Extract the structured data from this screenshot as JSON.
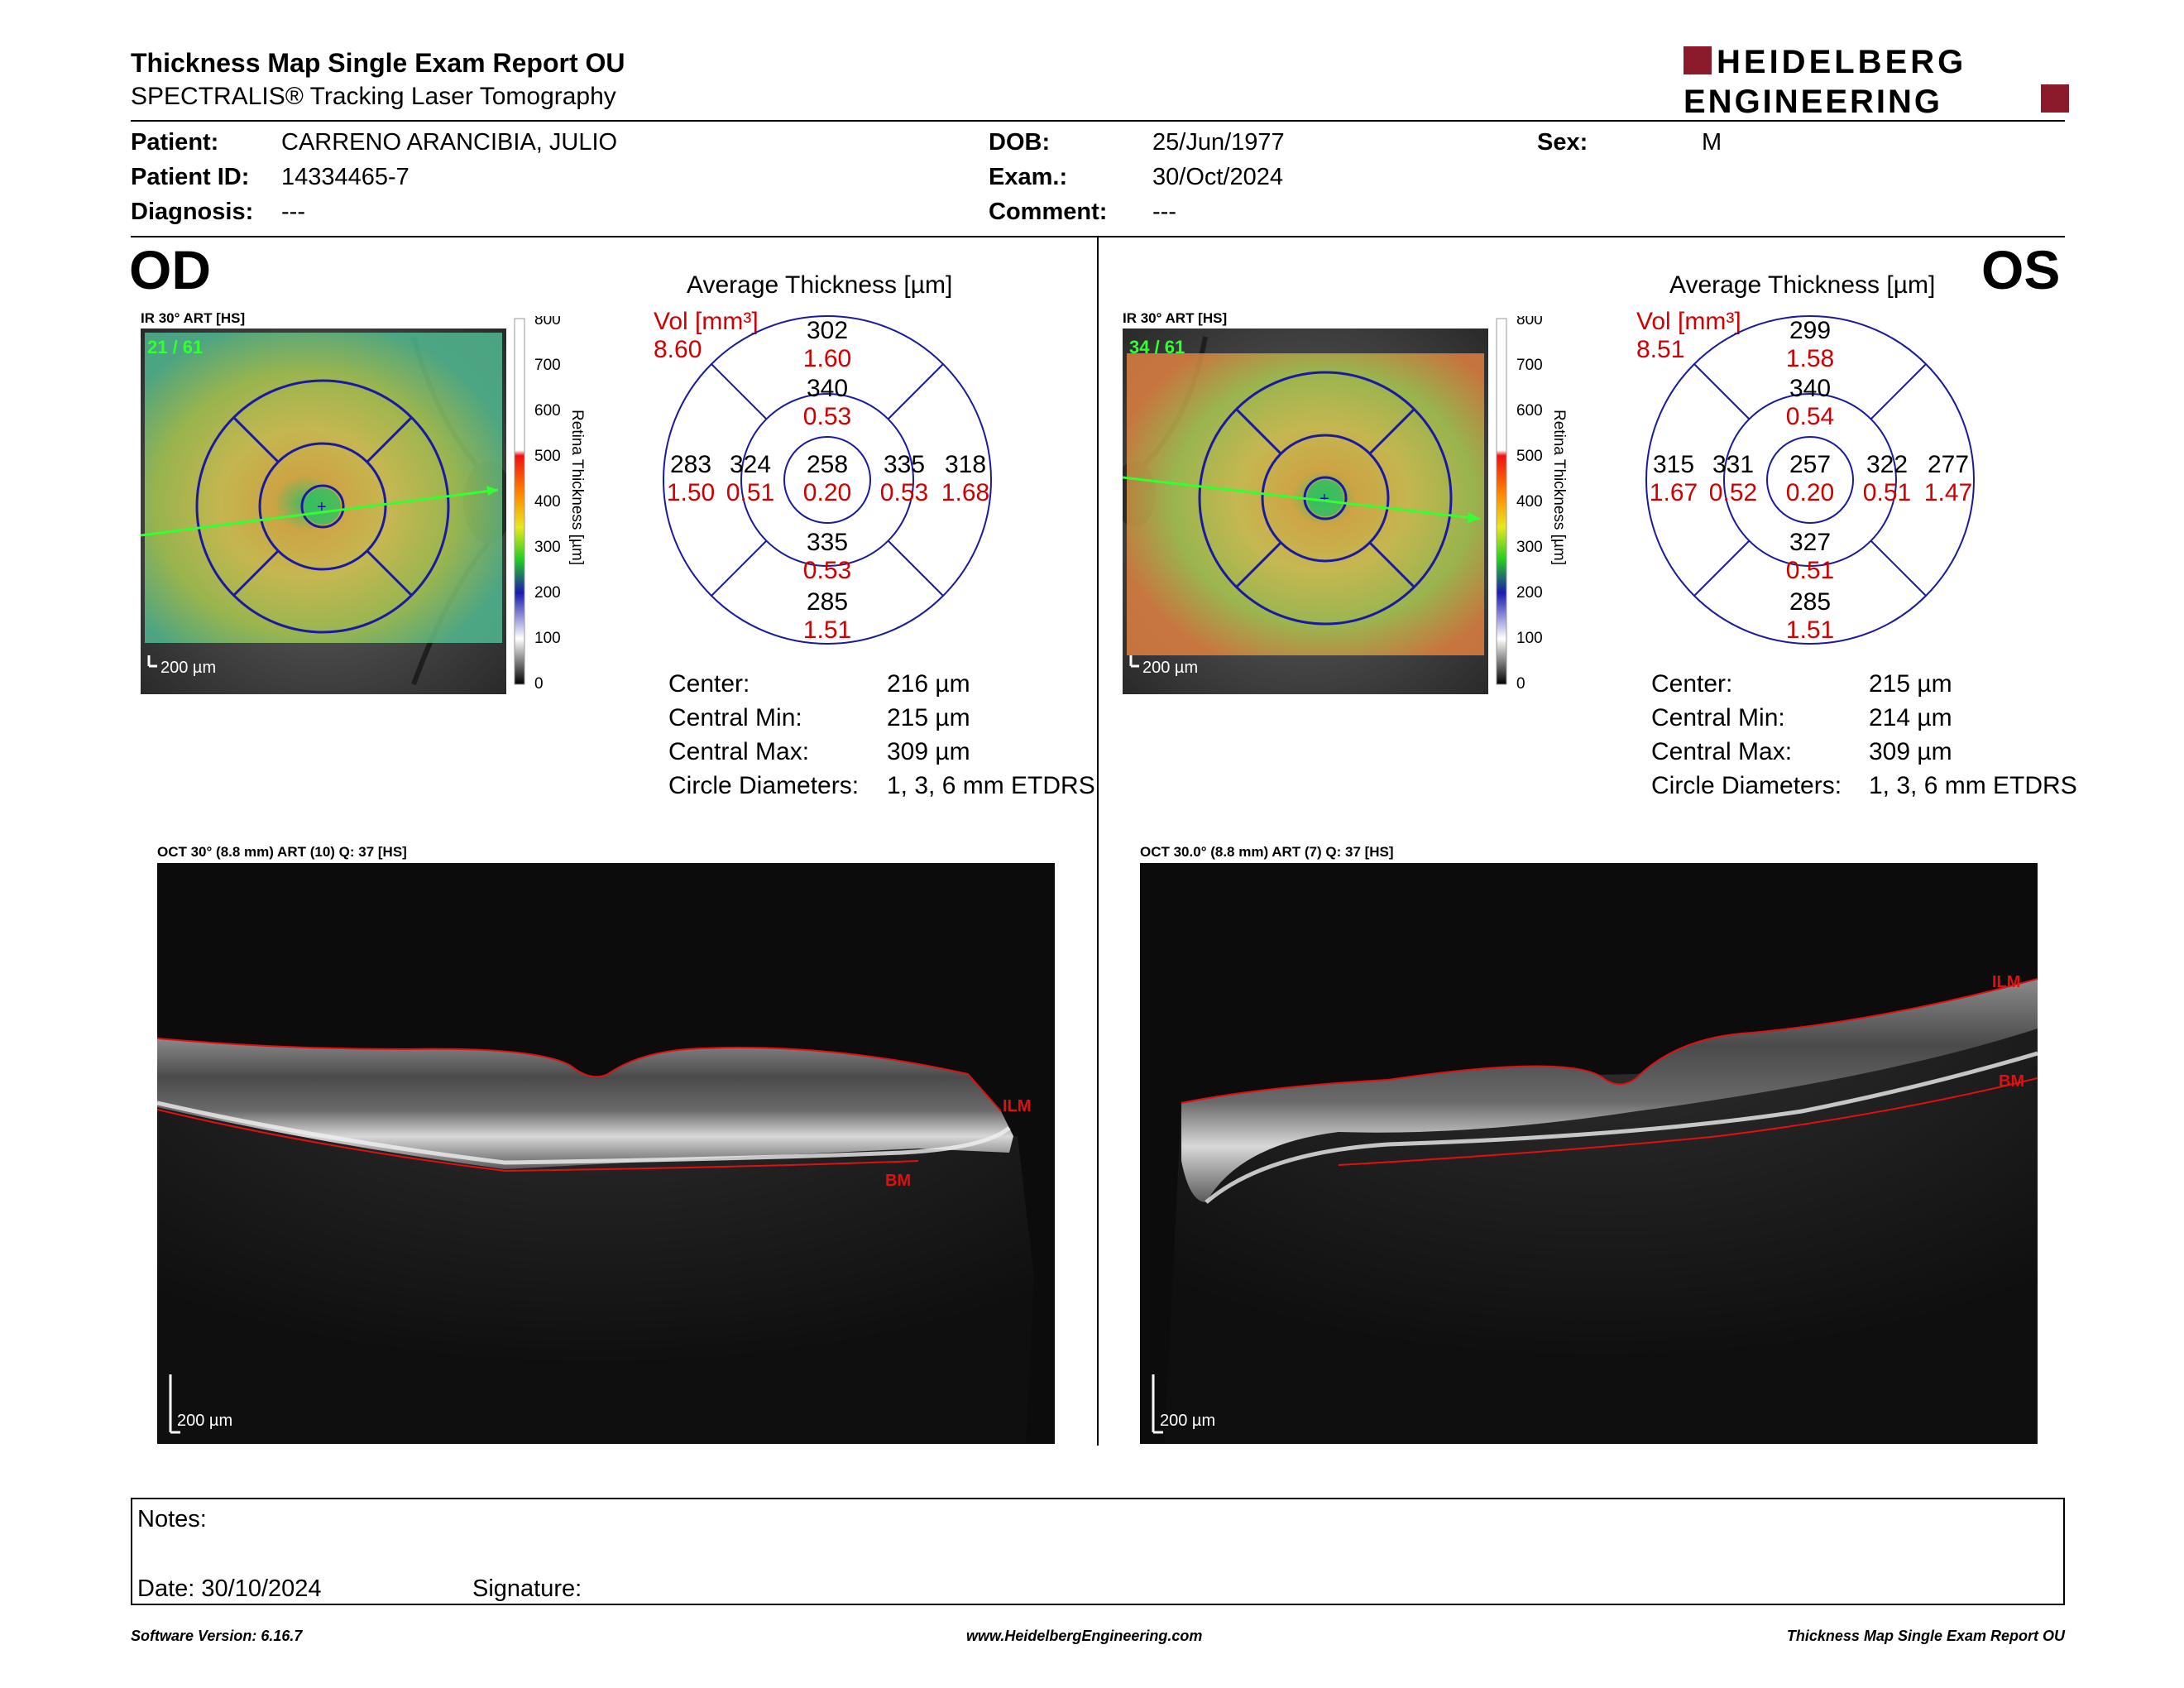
{
  "header": {
    "title": "Thickness Map Single Exam Report OU",
    "subtitle": "SPECTRALIS® Tracking Laser Tomography",
    "logo_line1": "HEIDELBERG",
    "logo_line2": "ENGINEERING",
    "brand_color": "#8b1a2b"
  },
  "patient": {
    "patient_label": "Patient:",
    "patient": "CARRENO ARANCIBIA, JULIO",
    "id_label": "Patient ID:",
    "id": "14334465-7",
    "diagnosis_label": "Diagnosis:",
    "diagnosis": "---",
    "dob_label": "DOB:",
    "dob": "25/Jun/1977",
    "exam_label": "Exam.:",
    "exam": "30/Oct/2024",
    "comment_label": "Comment:",
    "comment": "---",
    "sex_label": "Sex:",
    "sex": "M"
  },
  "od": {
    "eye": "OD",
    "ir_label": "IR 30° ART [HS]",
    "frames": "21 / 61",
    "scale": "200 µm",
    "colorbar_ticks": [
      "800",
      "700",
      "600",
      "500",
      "400",
      "300",
      "200",
      "100",
      "0"
    ],
    "colorbar_title": "Retina Thickness [µm]",
    "avg_title": "Average Thickness [µm]",
    "vol_label": "Vol [mm³]",
    "vol_total": "8.60",
    "sectors": {
      "outer_top": "302",
      "outer_top_vol": "1.60",
      "inner_top": "340",
      "inner_top_vol": "0.53",
      "outer_left": "283",
      "outer_left_vol": "1.50",
      "inner_left": "324",
      "inner_left_vol": "0.51",
      "center": "258",
      "center_vol": "0.20",
      "inner_right": "335",
      "inner_right_vol": "0.53",
      "outer_right": "318",
      "outer_right_vol": "1.68",
      "inner_bottom": "335",
      "inner_bottom_vol": "0.53",
      "outer_bottom": "285",
      "outer_bottom_vol": "1.51"
    },
    "stats": {
      "center_label": "Center:",
      "center": "216 µm",
      "min_label": "Central Min:",
      "min": "215 µm",
      "max_label": "Central Max:",
      "max": "309 µm",
      "diam_label": "Circle Diameters:",
      "diam": "1, 3, 6 mm ETDRS"
    },
    "oct_label": "OCT 30° (8.8 mm) ART (10) Q: 37 [HS]",
    "oct_scale": "200 µm",
    "ilm": "ILM",
    "bm": "BM"
  },
  "os": {
    "eye": "OS",
    "ir_label": "IR 30° ART [HS]",
    "frames": "34 / 61",
    "scale": "200 µm",
    "colorbar_ticks": [
      "800",
      "700",
      "600",
      "500",
      "400",
      "300",
      "200",
      "100",
      "0"
    ],
    "colorbar_title": "Retina Thickness [µm]",
    "avg_title": "Average Thickness [µm]",
    "vol_label": "Vol [mm³]",
    "vol_total": "8.51",
    "sectors": {
      "outer_top": "299",
      "outer_top_vol": "1.58",
      "inner_top": "340",
      "inner_top_vol": "0.54",
      "outer_left": "315",
      "outer_left_vol": "1.67",
      "inner_left": "331",
      "inner_left_vol": "0.52",
      "center": "257",
      "center_vol": "0.20",
      "inner_right": "322",
      "inner_right_vol": "0.51",
      "outer_right": "277",
      "outer_right_vol": "1.47",
      "inner_bottom": "327",
      "inner_bottom_vol": "0.51",
      "outer_bottom": "285",
      "outer_bottom_vol": "1.51"
    },
    "stats": {
      "center_label": "Center:",
      "center": "215 µm",
      "min_label": "Central Min:",
      "min": "214 µm",
      "max_label": "Central Max:",
      "max": "309 µm",
      "diam_label": "Circle Diameters:",
      "diam": "1, 3, 6 mm ETDRS"
    },
    "oct_label": "OCT 30.0° (8.8 mm) ART (7) Q: 37 [HS]",
    "oct_scale": "200 µm",
    "ilm": "ILM",
    "bm": "BM"
  },
  "notes": {
    "notes_label": "Notes:",
    "date_label": "Date: 30/10/2024",
    "signature_label": "Signature:"
  },
  "footer": {
    "software": "Software Version: 6.16.7",
    "url": "www.HeidelbergEngineering.com",
    "report": "Thickness Map Single Exam Report OU"
  }
}
